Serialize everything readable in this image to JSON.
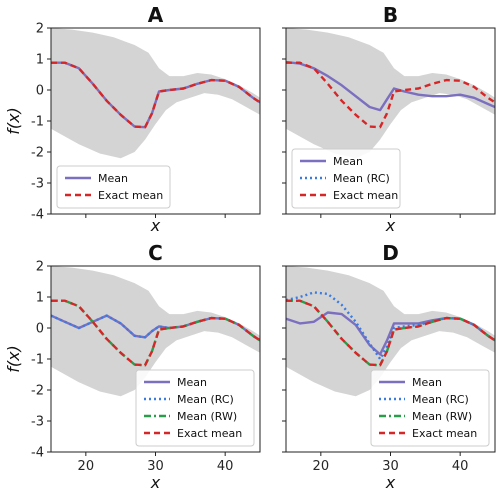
{
  "chart_data": [
    {
      "panel": "A",
      "type": "line",
      "title": "A",
      "xlabel": "x",
      "ylabel": "f(x)",
      "xlim": [
        15,
        45
      ],
      "ylim": [
        -4,
        2
      ],
      "xticks": [
        20,
        30,
        40
      ],
      "yticks": [
        -4,
        -3,
        -2,
        -1,
        0,
        1,
        2
      ],
      "show_xticklabels": false,
      "show_yticklabels": true,
      "legend_position": "lower-left",
      "series": [
        {
          "name": "Mean",
          "color": "#7b6fbf",
          "style": "solid",
          "x": [
            15,
            17,
            19,
            21,
            23,
            25,
            27,
            28.5,
            29.5,
            30.5,
            32,
            34,
            36,
            38,
            40,
            42,
            44,
            45
          ],
          "y": [
            0.88,
            0.88,
            0.7,
            0.2,
            -0.35,
            -0.8,
            -1.18,
            -1.2,
            -0.75,
            -0.05,
            0.0,
            0.05,
            0.2,
            0.32,
            0.3,
            0.1,
            -0.25,
            -0.4
          ]
        },
        {
          "name": "Exact mean",
          "color": "#d62728",
          "style": "dashed",
          "x": [
            15,
            17,
            19,
            21,
            23,
            25,
            27,
            28.5,
            29.5,
            30.5,
            32,
            34,
            36,
            38,
            40,
            42,
            44,
            45
          ],
          "y": [
            0.88,
            0.88,
            0.7,
            0.2,
            -0.35,
            -0.8,
            -1.18,
            -1.2,
            -0.75,
            -0.05,
            0.0,
            0.05,
            0.2,
            0.32,
            0.3,
            0.1,
            -0.25,
            -0.4
          ]
        }
      ]
    },
    {
      "panel": "B",
      "type": "line",
      "title": "B",
      "xlabel": "x",
      "ylabel": "",
      "xlim": [
        15,
        45
      ],
      "ylim": [
        -4,
        2
      ],
      "xticks": [
        20,
        30,
        40
      ],
      "yticks": [
        -4,
        -3,
        -2,
        -1,
        0,
        1,
        2
      ],
      "show_xticklabels": false,
      "show_yticklabels": false,
      "legend_position": "lower-left",
      "series": [
        {
          "name": "Mean",
          "color": "#7b6fbf",
          "style": "solid",
          "x": [
            15,
            17,
            19,
            21,
            23,
            25,
            27,
            28.5,
            29.5,
            30.5,
            32,
            34,
            36,
            38,
            40,
            42,
            44,
            45
          ],
          "y": [
            0.9,
            0.85,
            0.7,
            0.45,
            0.15,
            -0.2,
            -0.55,
            -0.65,
            -0.3,
            0.05,
            -0.05,
            -0.15,
            -0.2,
            -0.2,
            -0.15,
            -0.25,
            -0.45,
            -0.55
          ]
        },
        {
          "name": "Mean (RC)",
          "color": "#3a7be0",
          "style": "dotted",
          "x": [],
          "y": []
        },
        {
          "name": "Exact mean",
          "color": "#d62728",
          "style": "dashed",
          "x": [
            15,
            17,
            19,
            21,
            23,
            25,
            27,
            28.5,
            29.5,
            30.5,
            32,
            34,
            36,
            38,
            40,
            42,
            44,
            45
          ],
          "y": [
            0.88,
            0.88,
            0.7,
            0.2,
            -0.35,
            -0.8,
            -1.18,
            -1.2,
            -0.75,
            -0.05,
            0.0,
            0.05,
            0.2,
            0.32,
            0.3,
            0.1,
            -0.25,
            -0.4
          ]
        }
      ]
    },
    {
      "panel": "C",
      "type": "line",
      "title": "C",
      "xlabel": "x",
      "ylabel": "f(x)",
      "xlim": [
        15,
        45
      ],
      "ylim": [
        -4,
        2
      ],
      "xticks": [
        20,
        30,
        40
      ],
      "yticks": [
        -4,
        -3,
        -2,
        -1,
        0,
        1,
        2
      ],
      "show_xticklabels": true,
      "show_yticklabels": true,
      "legend_position": "lower-right",
      "series": [
        {
          "name": "Mean",
          "color": "#7b6fbf",
          "style": "solid",
          "x": [
            15,
            17,
            19,
            21,
            23,
            25,
            27,
            28.5,
            29.5,
            30.5,
            32,
            34,
            36,
            38,
            40,
            42,
            44,
            45
          ],
          "y": [
            0.4,
            0.2,
            0.0,
            0.2,
            0.4,
            0.15,
            -0.25,
            -0.3,
            -0.1,
            0.05,
            0.0,
            0.05,
            0.2,
            0.32,
            0.3,
            0.1,
            -0.25,
            -0.4
          ]
        },
        {
          "name": "Mean (RC)",
          "color": "#3a7be0",
          "style": "dotted",
          "x": [
            15,
            17,
            19,
            21,
            23,
            25,
            27,
            28.5,
            29.5,
            30.5,
            32,
            34,
            36,
            38,
            40,
            42,
            44,
            45
          ],
          "y": [
            0.4,
            0.2,
            0.0,
            0.2,
            0.4,
            0.15,
            -0.25,
            -0.3,
            -0.1,
            0.05,
            0.0,
            0.05,
            0.2,
            0.32,
            0.3,
            0.1,
            -0.25,
            -0.4
          ]
        },
        {
          "name": "Mean (RW)",
          "color": "#2a9d4a",
          "style": "dashdot",
          "x": [
            15,
            17,
            19,
            21,
            23,
            25,
            27,
            28.5,
            29.5,
            30.5,
            32,
            34,
            36,
            38,
            40,
            42,
            44,
            45
          ],
          "y": [
            0.88,
            0.88,
            0.7,
            0.2,
            -0.35,
            -0.8,
            -1.18,
            -1.2,
            -0.75,
            -0.05,
            0.0,
            0.05,
            0.2,
            0.32,
            0.3,
            0.1,
            -0.25,
            -0.4
          ]
        },
        {
          "name": "Exact mean",
          "color": "#d62728",
          "style": "dashed",
          "x": [
            15,
            17,
            19,
            21,
            23,
            25,
            27,
            28.5,
            29.5,
            30.5,
            32,
            34,
            36,
            38,
            40,
            42,
            44,
            45
          ],
          "y": [
            0.88,
            0.88,
            0.7,
            0.2,
            -0.35,
            -0.8,
            -1.18,
            -1.2,
            -0.75,
            -0.05,
            0.0,
            0.05,
            0.2,
            0.32,
            0.3,
            0.1,
            -0.25,
            -0.4
          ]
        }
      ]
    },
    {
      "panel": "D",
      "type": "line",
      "title": "D",
      "xlabel": "x",
      "ylabel": "",
      "xlim": [
        15,
        45
      ],
      "ylim": [
        -4,
        2
      ],
      "xticks": [
        20,
        30,
        40
      ],
      "yticks": [
        -4,
        -3,
        -2,
        -1,
        0,
        1,
        2
      ],
      "show_xticklabels": true,
      "show_yticklabels": false,
      "legend_position": "lower-right",
      "series": [
        {
          "name": "Mean",
          "color": "#7b6fbf",
          "style": "solid",
          "x": [
            15,
            17,
            19,
            21,
            23,
            25,
            27,
            28.5,
            29.5,
            30.5,
            32,
            34,
            36,
            38,
            40,
            42,
            44,
            45
          ],
          "y": [
            0.3,
            0.15,
            0.2,
            0.5,
            0.45,
            0.1,
            -0.55,
            -0.85,
            -0.4,
            0.15,
            0.15,
            0.15,
            0.25,
            0.32,
            0.3,
            0.1,
            -0.25,
            -0.4
          ]
        },
        {
          "name": "Mean (RC)",
          "color": "#3a7be0",
          "style": "dotted",
          "x": [
            15,
            17,
            19,
            21,
            23,
            25,
            27,
            28.5,
            29.5,
            30.5,
            32,
            34,
            36,
            38,
            40,
            42,
            44,
            45
          ],
          "y": [
            0.9,
            1.0,
            1.15,
            1.1,
            0.75,
            0.2,
            -0.5,
            -1.0,
            -0.6,
            0.0,
            0.05,
            0.1,
            0.22,
            0.32,
            0.3,
            0.1,
            -0.25,
            -0.4
          ]
        },
        {
          "name": "Mean (RW)",
          "color": "#2a9d4a",
          "style": "dashdot",
          "x": [
            15,
            17,
            19,
            21,
            23,
            25,
            27,
            28.5,
            29.5,
            30.5,
            32,
            34,
            36,
            38,
            40,
            42,
            44,
            45
          ],
          "y": [
            0.88,
            0.88,
            0.7,
            0.2,
            -0.35,
            -0.8,
            -1.18,
            -1.2,
            -0.75,
            -0.05,
            0.0,
            0.05,
            0.2,
            0.32,
            0.3,
            0.1,
            -0.25,
            -0.4
          ]
        },
        {
          "name": "Exact mean",
          "color": "#d62728",
          "style": "dashed",
          "x": [
            15,
            17,
            19,
            21,
            23,
            25,
            27,
            28.5,
            29.5,
            30.5,
            32,
            34,
            36,
            38,
            40,
            42,
            44,
            45
          ],
          "y": [
            0.88,
            0.88,
            0.7,
            0.2,
            -0.35,
            -0.8,
            -1.18,
            -1.2,
            -0.75,
            -0.05,
            0.0,
            0.05,
            0.2,
            0.32,
            0.3,
            0.1,
            -0.25,
            -0.4
          ]
        }
      ]
    }
  ]
}
